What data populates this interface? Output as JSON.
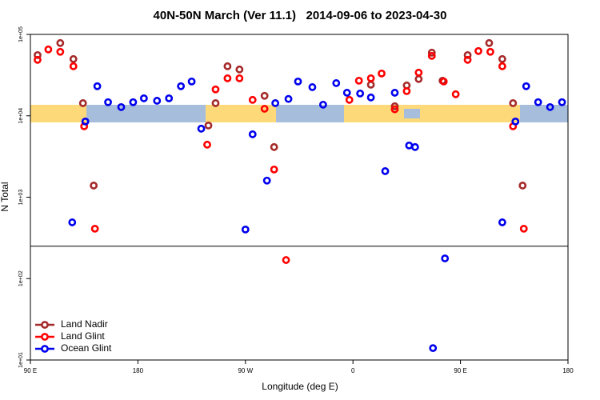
{
  "chart_data": {
    "type": "scatter",
    "title": "40N-50N March (Ver 11.1)   2014-09-06 to 2023-04-30",
    "xlabel": "Longitude (deg E)",
    "ylabel": "N Total",
    "xlim": [
      90,
      540
    ],
    "xticks": [
      {
        "value": 90,
        "label": "90 E"
      },
      {
        "value": 180,
        "label": "180"
      },
      {
        "value": 270,
        "label": "90 W"
      },
      {
        "value": 360,
        "label": "0"
      },
      {
        "value": 450,
        "label": "90 E"
      },
      {
        "value": 540,
        "label": "180"
      }
    ],
    "ylim": [
      10,
      100000
    ],
    "log_y": true,
    "yticks": [
      {
        "value": 10,
        "label": "1e+01"
      },
      {
        "value": 100,
        "label": "1e+02"
      },
      {
        "value": 1000,
        "label": "1e+03"
      },
      {
        "value": 10000,
        "label": "1e+04"
      },
      {
        "value": 100000,
        "label": "1e+05"
      }
    ],
    "hline": 250,
    "legend": "bottomleft",
    "series": [
      {
        "name": "Land Nadir",
        "color": "#a52a2a",
        "x": [
          96,
          115,
          126,
          134,
          143,
          239,
          245,
          255,
          265,
          286,
          294,
          375,
          395,
          405,
          415,
          426,
          435,
          456,
          474,
          485,
          494,
          502
        ],
        "values": [
          55700,
          78300,
          49800,
          14300,
          1390,
          7600,
          14300,
          40600,
          37100,
          17600,
          4130,
          24100,
          13100,
          23600,
          28300,
          59700,
          27000,
          55700,
          78300,
          49800,
          14300,
          1390
        ]
      },
      {
        "name": "Land Glint",
        "color": "#ff0000",
        "x": [
          96,
          105,
          115,
          126,
          135,
          144,
          238,
          245,
          255,
          265,
          276,
          286,
          294,
          304,
          357,
          365,
          375,
          384,
          395,
          405,
          415,
          426,
          436,
          446,
          456,
          465,
          475,
          485,
          494,
          503
        ],
        "values": [
          48700,
          65300,
          61100,
          40600,
          7430,
          410,
          4420,
          21100,
          28900,
          28900,
          15700,
          12200,
          2190,
          169,
          15700,
          27000,
          28900,
          33100,
          12000,
          20100,
          33900,
          54500,
          26400,
          18400,
          48700,
          62500,
          61100,
          40600,
          7430,
          410
        ]
      },
      {
        "name": "Ocean Glint",
        "color": "#0000ee",
        "x": [
          125,
          136,
          146,
          155,
          166,
          176,
          185,
          196,
          206,
          216,
          225,
          233,
          270,
          276,
          288,
          295,
          306,
          314,
          326,
          335,
          346,
          355,
          366,
          375,
          387,
          395,
          407,
          412,
          427,
          437,
          496,
          485,
          505,
          515,
          525,
          535
        ],
        "values": [
          491,
          8510,
          23100,
          14700,
          12800,
          14700,
          16400,
          15300,
          16400,
          23100,
          26400,
          6950,
          401,
          5930,
          1600,
          14300,
          16100,
          26400,
          22500,
          13700,
          25200,
          19200,
          18800,
          16800,
          2090,
          19200,
          4320,
          4130,
          14,
          177,
          8510,
          491,
          23100,
          14700,
          12800,
          14700
        ]
      }
    ]
  }
}
